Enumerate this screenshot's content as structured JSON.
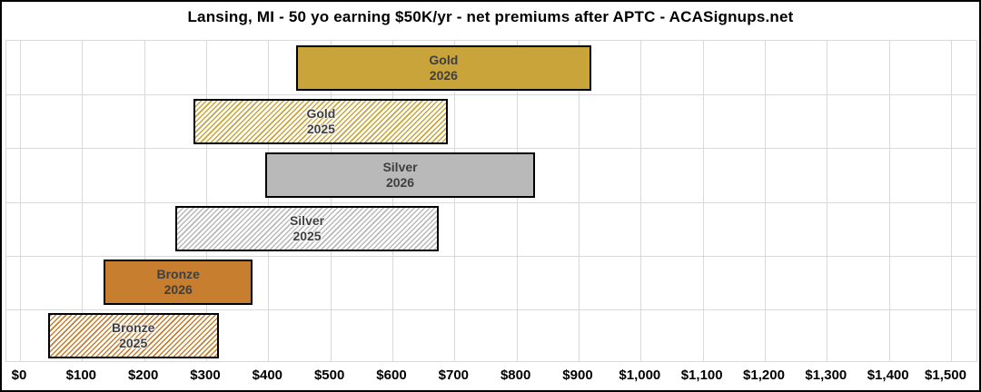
{
  "title": "Lansing, MI - 50 yo earning $50K/yr - net premiums after APTC - ACASignups.net",
  "colors": {
    "gold": "#c9a43a",
    "silver": "#b9b9b9",
    "bronze": "#c77e2e",
    "bar_border": "#000000",
    "bar_label_text": "#3f3f3f",
    "gridline": "#d9d9d9",
    "background": "#ffffff"
  },
  "chart_data": {
    "type": "bar",
    "subtype": "horizontal-floating-range",
    "title": "Lansing, MI - 50 yo earning $50K/yr - net premiums after APTC - ACASignups.net",
    "xlabel": "",
    "ylabel": "",
    "xlim": [
      0,
      1500
    ],
    "grid": true,
    "legend": "none",
    "x_axis": {
      "min": 0,
      "max": 1500,
      "tick_interval": 100,
      "tick_labels": [
        "$0",
        "$100",
        "$200",
        "$300",
        "$400",
        "$500",
        "$600",
        "$700",
        "$800",
        "$900",
        "$1,000",
        "$1,100",
        "$1,200",
        "$1,300",
        "$1,400",
        "$1,500"
      ]
    },
    "bars": [
      {
        "label_line1": "Gold",
        "label_line2": "2026",
        "min": 445,
        "max": 920,
        "color": "#c9a43a",
        "pattern": "solid"
      },
      {
        "label_line1": "Gold",
        "label_line2": "2025",
        "min": 280,
        "max": 690,
        "color": "#c9a43a",
        "pattern": "hatched"
      },
      {
        "label_line1": "Silver",
        "label_line2": "2026",
        "min": 395,
        "max": 830,
        "color": "#b9b9b9",
        "pattern": "solid"
      },
      {
        "label_line1": "Silver",
        "label_line2": "2025",
        "min": 250,
        "max": 675,
        "color": "#b9b9b9",
        "pattern": "hatched"
      },
      {
        "label_line1": "Bronze",
        "label_line2": "2026",
        "min": 135,
        "max": 375,
        "color": "#c77e2e",
        "pattern": "solid"
      },
      {
        "label_line1": "Bronze",
        "label_line2": "2025",
        "min": 45,
        "max": 320,
        "color": "#c77e2e",
        "pattern": "hatched"
      }
    ]
  }
}
